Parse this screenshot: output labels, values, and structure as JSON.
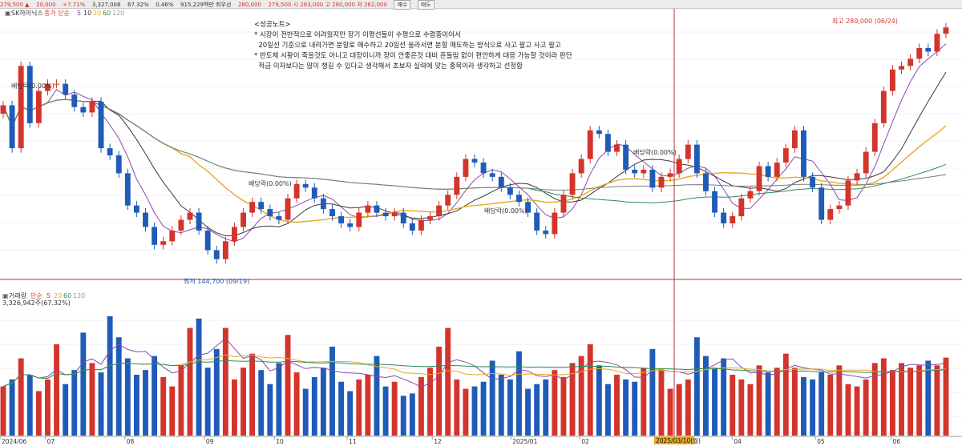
{
  "topbar": {
    "price": "279,500 ▲",
    "change": "20,000",
    "change_pct": "+7.71%",
    "volume": "3,327,008",
    "pct2": "67.32%",
    "pct3": "0.46%",
    "amount": "915,229백만 회우선",
    "v1": "280,000",
    "v2": "279,500 시 263,000 고 280,000 저 262,000",
    "buy_btn": "매수",
    "sell_btn": "매도"
  },
  "price_panel": {
    "name": "SK하이닉스",
    "ma_label": "종가 단순",
    "ma_periods": [
      "5",
      "10",
      "20",
      "60",
      "120"
    ]
  },
  "volume_panel": {
    "label": "거래량",
    "ma_label": "단순",
    "ma_periods": [
      "5",
      "20",
      "60",
      "120"
    ],
    "value": "3,326,942주(67.32%)"
  },
  "note": {
    "title": "<성공노트>",
    "lines": [
      "* 시장이 전반적으로 어려웠지만 장기 이평선들이 수평으로 수렴중이어서",
      "  20일선 기준으로 내려가면 분할로 매수하고 20일선 올라서면 분할 매도하는 방식으로 사고 팔고 사고 팔고",
      "* 반도체 시황이 죽을것도 아니고 대장이니까 장이 안좋은것 대비 흔들림 없이 편안하게 대응 가능할 것이라 판단",
      "  적금 이자보다는 많이 챙길 수 있다고 생각해서 초보자 실력에 맞는 종목이라 생각하고 선정함"
    ]
  },
  "annotations": {
    "high": "최고 280,000 (06/24)",
    "low": "최저 144,700 (09/19)",
    "dividends": [
      "배당락(0.00%)",
      "배당락(0.00%)",
      "배당락(0.00%)",
      "배당락(0.00%)"
    ],
    "crosshair_date": "2025/03/10(월)"
  },
  "x_axis_labels": [
    "2024/06",
    "07",
    "08",
    "09",
    "10",
    "11",
    "12",
    "2025/01",
    "02",
    "03",
    "04",
    "05",
    "06"
  ],
  "colors": {
    "up": "#d3342c",
    "down": "#1f5bb8",
    "ma5": "#8b4aa8",
    "ma10": "#3a3a3a",
    "ma20": "#e8a923",
    "ma60": "#2e8b57",
    "ma120": "#7a7a7a",
    "crosshair": "#b0303a"
  },
  "chart_data": {
    "type": "candlestick",
    "series": [
      {
        "name": "종가",
        "values": [
          236,
          212,
          258,
          226,
          244,
          248,
          248,
          242,
          235,
          232,
          238,
          212,
          208,
          198,
          180,
          176,
          168,
          158,
          160,
          166,
          172,
          176,
          166,
          155,
          150,
          160,
          168,
          176,
          182,
          178,
          174,
          172,
          184,
          192,
          190,
          184,
          178,
          174,
          170,
          168,
          176,
          180,
          176,
          174,
          176,
          170,
          166,
          172,
          174,
          180,
          186,
          196,
          206,
          204,
          198,
          196,
          190,
          186,
          182,
          176,
          166,
          164,
          176,
          186,
          198,
          206,
          222,
          220,
          210,
          214,
          200,
          198,
          200,
          190,
          196,
          198,
          206,
          214,
          198,
          188,
          176,
          170,
          174,
          184,
          188,
          202,
          196,
          204,
          212,
          222,
          196,
          190,
          172,
          178,
          180,
          194,
          198,
          210,
          226,
          244,
          256,
          258,
          262,
          268,
          266,
          276,
          279.5
        ]
      },
      {
        "name": "거래량",
        "values": [
          2.1,
          2.4,
          3.3,
          2.6,
          1.9,
          2.4,
          3.9,
          2.2,
          2.8,
          4.4,
          3.1,
          2.7,
          5.1,
          4.2,
          3.3,
          2.6,
          2.8,
          3.4,
          2.5,
          2.1,
          3.0,
          4.6,
          5.0,
          2.9,
          3.7,
          4.6,
          2.4,
          2.9,
          3.5,
          2.8,
          2.2,
          3.1,
          4.3,
          2.7,
          2.0,
          2.5,
          2.9,
          3.8,
          2.3,
          1.9,
          2.4,
          2.6,
          3.4,
          2.1,
          2.3,
          1.7,
          1.8,
          2.5,
          2.9,
          3.8,
          4.6,
          2.4,
          2.0,
          2.1,
          2.3,
          3.2,
          2.6,
          2.4,
          3.6,
          2.0,
          2.2,
          2.4,
          2.8,
          2.5,
          3.1,
          3.4,
          3.9,
          3.0,
          2.2,
          2.6,
          2.4,
          2.3,
          2.9,
          3.7,
          2.8,
          2.0,
          2.2,
          2.4,
          4.2,
          3.4,
          2.9,
          3.3,
          2.6,
          2.4,
          2.2,
          3.0,
          2.7,
          2.9,
          3.5,
          2.9,
          2.5,
          2.4,
          2.7,
          2.6,
          3.0,
          2.2,
          2.1,
          2.4,
          3.1,
          3.3,
          2.8,
          3.1,
          2.9,
          3.0,
          3.2,
          3.0,
          3.33
        ]
      }
    ],
    "axis_range_y": [
      140,
      285
    ],
    "grid": true
  }
}
